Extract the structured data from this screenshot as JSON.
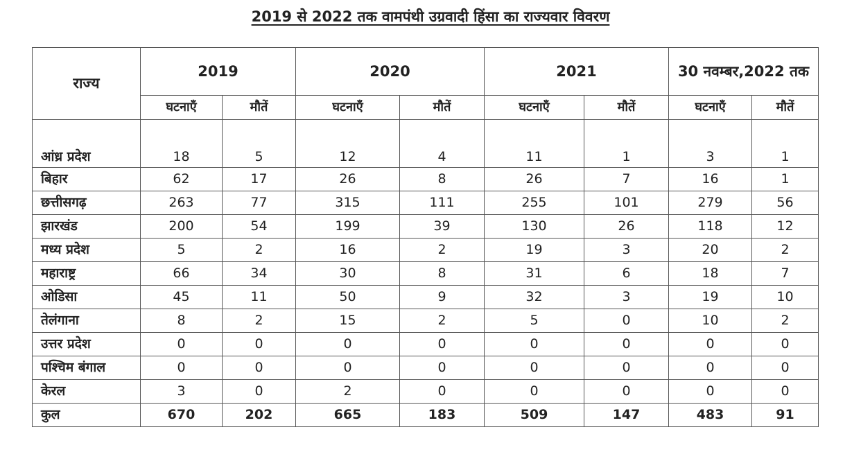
{
  "title": "2019 से 2022 तक वामपंथी उग्रवादी हिंसा का राज्यवार विवरण",
  "header": {
    "state": "राज्य",
    "periods": [
      "2019",
      "2020",
      "2021",
      "30 नवम्बर,2022 तक"
    ],
    "incidents": "घटनाएँ",
    "deaths": "मौतें"
  },
  "rows": [
    {
      "state": "आंध्र प्रदेश",
      "values": [
        "18",
        "5",
        "12",
        "4",
        "11",
        "1",
        "3",
        "1"
      ]
    },
    {
      "state": "बिहार",
      "values": [
        "62",
        "17",
        "26",
        "8",
        "26",
        "7",
        "16",
        "1"
      ]
    },
    {
      "state": "छत्तीसगढ़",
      "values": [
        "263",
        "77",
        "315",
        "111",
        "255",
        "101",
        "279",
        "56"
      ]
    },
    {
      "state": "झारखंड",
      "values": [
        "200",
        "54",
        "199",
        "39",
        "130",
        "26",
        "118",
        "12"
      ]
    },
    {
      "state": "मध्य प्रदेश",
      "values": [
        "5",
        "2",
        "16",
        "2",
        "19",
        "3",
        "20",
        "2"
      ]
    },
    {
      "state": "महाराष्ट्र",
      "values": [
        "66",
        "34",
        "30",
        "8",
        "31",
        "6",
        "18",
        "7"
      ]
    },
    {
      "state": "ओडिसा",
      "values": [
        "45",
        "11",
        "50",
        "9",
        "32",
        "3",
        "19",
        "10"
      ]
    },
    {
      "state": "तेलंगाना",
      "values": [
        "8",
        "2",
        "15",
        "2",
        "5",
        "0",
        "10",
        "2"
      ]
    },
    {
      "state": "उत्तर प्रदेश",
      "values": [
        "0",
        "0",
        "0",
        "0",
        "0",
        "0",
        "0",
        "0"
      ]
    },
    {
      "state": "पश्चिम बंगाल",
      "values": [
        "0",
        "0",
        "0",
        "0",
        "0",
        "0",
        "0",
        "0"
      ]
    },
    {
      "state": "केरल",
      "values": [
        "3",
        "0",
        "2",
        "0",
        "0",
        "0",
        "0",
        "0"
      ]
    }
  ],
  "total": {
    "state": "कुल",
    "values": [
      "670",
      "202",
      "665",
      "183",
      "509",
      "147",
      "483",
      "91"
    ]
  }
}
